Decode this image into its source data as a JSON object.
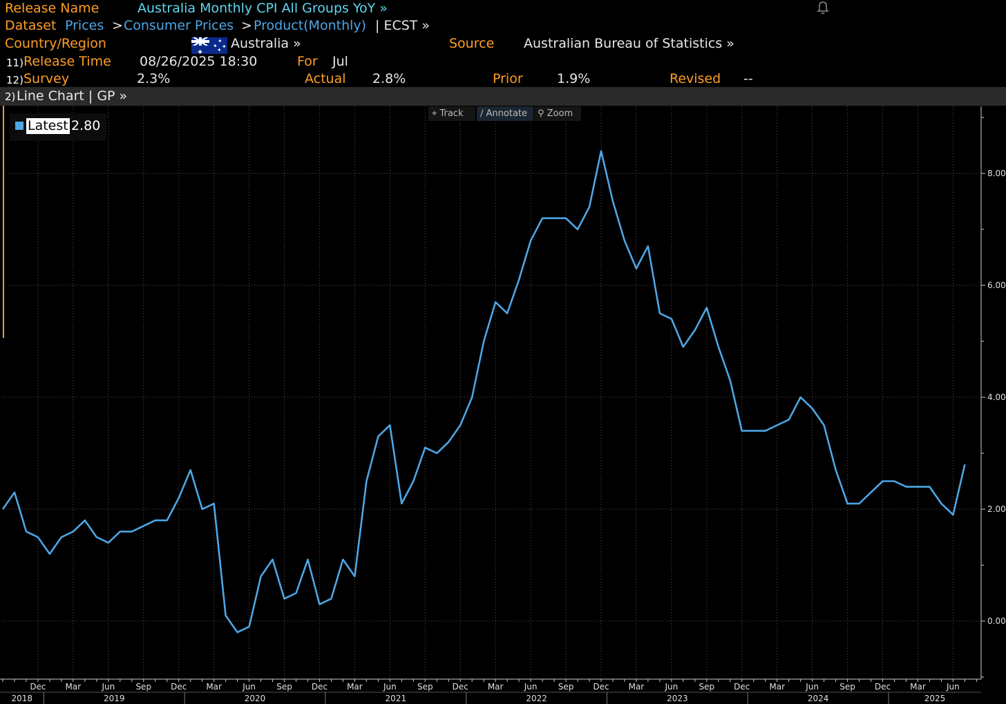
{
  "header": {
    "release_name_label": "Release Name",
    "release_name": "Australia Monthly CPI All Groups YoY »",
    "dataset_label": "Dataset",
    "dataset_path": [
      {
        "label": "Prices",
        "sep": ">"
      },
      {
        "label": "Consumer Prices",
        "sep": ">"
      },
      {
        "label": "Product(Monthly)",
        "sep": ""
      }
    ],
    "dataset_suffix": "| ECST »",
    "country_label": "Country/Region",
    "country": "Australia »",
    "source_label": "Source",
    "source": "Australian Bureau of Statistics »",
    "release_time_num": "11)",
    "release_time_label": "Release Time",
    "release_time": "08/26/2025 18:30",
    "for_label": "For",
    "for_value": "Jul",
    "survey_num": "12)",
    "survey_label": "Survey",
    "survey": "2.3%",
    "actual_label": "Actual",
    "actual": "2.8%",
    "prior_label": "Prior",
    "prior": "1.9%",
    "revised_label": "Revised",
    "revised": "--"
  },
  "chart_bar": {
    "num": "2)",
    "label": "Line Chart | GP »"
  },
  "toolbar": {
    "track": "Track",
    "annotate": "Annotate",
    "zoom": "Zoom"
  },
  "legend": {
    "label": "Latest",
    "value": "2.80"
  },
  "icons": {
    "bell": "bell-icon",
    "flag": "australia-flag-icon"
  },
  "colors": {
    "background": "#000000",
    "line": "#4ea6e6",
    "label_orange": "#ff9e28",
    "title_cyan": "#5fd7f0",
    "link_blue": "#4ea6e6"
  },
  "chart_data": {
    "type": "line",
    "title": "",
    "xlabel": "",
    "ylabel": "",
    "ylim": [
      -1.05,
      9.0
    ],
    "yticks": [
      0,
      2,
      4,
      6,
      8
    ],
    "ytick_labels": [
      "0.00",
      "2.00",
      "4.00",
      "6.00",
      "8.00"
    ],
    "grid": true,
    "x_start": "2018-09",
    "x_month_labels": [
      {
        "month": "2018-12",
        "label": "Dec"
      },
      {
        "month": "2019-03",
        "label": "Mar"
      },
      {
        "month": "2019-06",
        "label": "Jun"
      },
      {
        "month": "2019-09",
        "label": "Sep"
      },
      {
        "month": "2019-12",
        "label": "Dec"
      },
      {
        "month": "2020-03",
        "label": "Mar"
      },
      {
        "month": "2020-06",
        "label": "Jun"
      },
      {
        "month": "2020-09",
        "label": "Sep"
      },
      {
        "month": "2020-12",
        "label": "Dec"
      },
      {
        "month": "2021-03",
        "label": "Mar"
      },
      {
        "month": "2021-06",
        "label": "Jun"
      },
      {
        "month": "2021-09",
        "label": "Sep"
      },
      {
        "month": "2021-12",
        "label": "Dec"
      },
      {
        "month": "2022-03",
        "label": "Mar"
      },
      {
        "month": "2022-06",
        "label": "Jun"
      },
      {
        "month": "2022-09",
        "label": "Sep"
      },
      {
        "month": "2022-12",
        "label": "Dec"
      },
      {
        "month": "2023-03",
        "label": "Mar"
      },
      {
        "month": "2023-06",
        "label": "Jun"
      },
      {
        "month": "2023-09",
        "label": "Sep"
      },
      {
        "month": "2023-12",
        "label": "Dec"
      },
      {
        "month": "2024-03",
        "label": "Mar"
      },
      {
        "month": "2024-06",
        "label": "Jun"
      },
      {
        "month": "2024-09",
        "label": "Sep"
      },
      {
        "month": "2024-12",
        "label": "Dec"
      },
      {
        "month": "2025-03",
        "label": "Mar"
      },
      {
        "month": "2025-06",
        "label": "Jun"
      }
    ],
    "x_year_labels": [
      {
        "year": "2018",
        "label": "2018"
      },
      {
        "year": "2019",
        "label": "2019"
      },
      {
        "year": "2020",
        "label": "2020"
      },
      {
        "year": "2021",
        "label": "2021"
      },
      {
        "year": "2022",
        "label": "2022"
      },
      {
        "year": "2023",
        "label": "2023"
      },
      {
        "year": "2024",
        "label": "2024"
      },
      {
        "year": "2025",
        "label": "2025"
      }
    ],
    "series": [
      {
        "name": "Latest",
        "x": [
          "2018-09",
          "2018-10",
          "2018-11",
          "2018-12",
          "2019-01",
          "2019-02",
          "2019-03",
          "2019-04",
          "2019-05",
          "2019-06",
          "2019-07",
          "2019-08",
          "2019-09",
          "2019-10",
          "2019-11",
          "2019-12",
          "2020-01",
          "2020-02",
          "2020-03",
          "2020-04",
          "2020-05",
          "2020-06",
          "2020-07",
          "2020-08",
          "2020-09",
          "2020-10",
          "2020-11",
          "2020-12",
          "2021-01",
          "2021-02",
          "2021-03",
          "2021-04",
          "2021-05",
          "2021-06",
          "2021-07",
          "2021-08",
          "2021-09",
          "2021-10",
          "2021-11",
          "2021-12",
          "2022-01",
          "2022-02",
          "2022-03",
          "2022-04",
          "2022-05",
          "2022-06",
          "2022-07",
          "2022-08",
          "2022-09",
          "2022-10",
          "2022-11",
          "2022-12",
          "2023-01",
          "2023-02",
          "2023-03",
          "2023-04",
          "2023-05",
          "2023-06",
          "2023-07",
          "2023-08",
          "2023-09",
          "2023-10",
          "2023-11",
          "2023-12",
          "2024-01",
          "2024-02",
          "2024-03",
          "2024-04",
          "2024-05",
          "2024-06",
          "2024-07",
          "2024-08",
          "2024-09",
          "2024-10",
          "2024-11",
          "2024-12",
          "2025-01",
          "2025-02",
          "2025-03",
          "2025-04",
          "2025-05",
          "2025-06",
          "2025-07"
        ],
        "values": [
          2.0,
          2.3,
          1.6,
          1.5,
          1.2,
          1.5,
          1.6,
          1.8,
          1.5,
          1.4,
          1.6,
          1.6,
          1.7,
          1.8,
          1.8,
          2.2,
          2.7,
          2.0,
          2.1,
          0.1,
          -0.2,
          -0.1,
          0.8,
          1.1,
          0.4,
          0.5,
          1.1,
          0.3,
          0.4,
          1.1,
          0.8,
          2.5,
          3.3,
          3.5,
          2.1,
          2.5,
          3.1,
          3.0,
          3.2,
          3.5,
          4.0,
          5.0,
          5.7,
          5.5,
          6.1,
          6.8,
          7.2,
          7.2,
          7.2,
          7.0,
          7.4,
          8.4,
          7.5,
          6.8,
          6.3,
          6.7,
          5.5,
          5.4,
          4.9,
          5.2,
          5.6,
          4.9,
          4.3,
          3.4,
          3.4,
          3.4,
          3.5,
          3.6,
          4.0,
          3.8,
          3.5,
          2.7,
          2.1,
          2.1,
          2.3,
          2.5,
          2.5,
          2.4,
          2.4,
          2.4,
          2.1,
          1.9,
          2.8
        ]
      }
    ]
  }
}
